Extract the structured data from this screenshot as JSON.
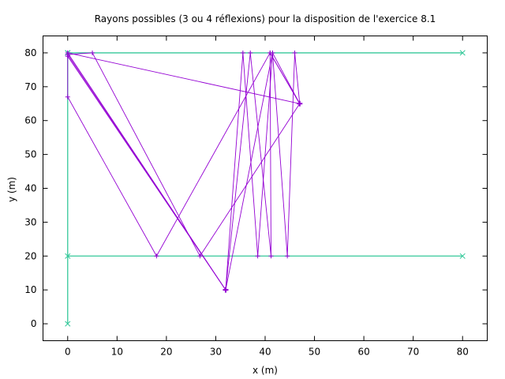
{
  "chart_data": {
    "type": "line",
    "title": "Rayons possibles (3 ou 4 réflexions) pour la disposition de l'exercice 8.1",
    "xlabel": "x (m)",
    "ylabel": "y (m)",
    "xlim": [
      -5,
      85
    ],
    "ylim": [
      -5,
      85
    ],
    "xticks": [
      0,
      10,
      20,
      30,
      40,
      50,
      60,
      70,
      80
    ],
    "yticks": [
      0,
      10,
      20,
      30,
      40,
      50,
      60,
      70,
      80
    ],
    "grid": false,
    "colors": {
      "walls": "#35c89a",
      "rays": "#9400d3",
      "axes": "#000000"
    },
    "walls": [
      {
        "name": "left-wall",
        "points": [
          [
            0,
            0
          ],
          [
            0,
            80
          ]
        ]
      },
      {
        "name": "top-wall",
        "points": [
          [
            0,
            80
          ],
          [
            80,
            80
          ]
        ]
      },
      {
        "name": "inner-wall",
        "points": [
          [
            0,
            20
          ],
          [
            80,
            20
          ]
        ]
      }
    ],
    "source": [
      32,
      10
    ],
    "receiver": [
      47,
      65
    ],
    "rays": [
      {
        "name": "ray-1",
        "points": [
          [
            32,
            10
          ],
          [
            0,
            80
          ],
          [
            0,
            80
          ],
          [
            47,
            65
          ]
        ]
      },
      {
        "name": "ray-2",
        "points": [
          [
            32,
            10
          ],
          [
            0,
            79.5
          ],
          [
            5,
            80
          ],
          [
            26.8,
            20
          ],
          [
            47,
            65
          ]
        ]
      },
      {
        "name": "ray-3",
        "points": [
          [
            32,
            10
          ],
          [
            35.5,
            80
          ],
          [
            38.5,
            20
          ],
          [
            41.5,
            80
          ],
          [
            47,
            65
          ]
        ]
      },
      {
        "name": "ray-4",
        "points": [
          [
            32,
            10
          ],
          [
            37,
            80
          ],
          [
            41.2,
            20
          ],
          [
            41,
            80
          ],
          [
            47,
            65
          ]
        ]
      },
      {
        "name": "ray-5",
        "points": [
          [
            32,
            10
          ],
          [
            41.5,
            80
          ],
          [
            44.5,
            20
          ],
          [
            46,
            80
          ],
          [
            47,
            65
          ]
        ]
      },
      {
        "name": "ray-6",
        "points": [
          [
            32,
            10
          ],
          [
            0,
            79
          ],
          [
            0,
            67
          ],
          [
            18,
            20
          ],
          [
            41,
            80
          ],
          [
            47,
            65
          ]
        ]
      }
    ]
  }
}
